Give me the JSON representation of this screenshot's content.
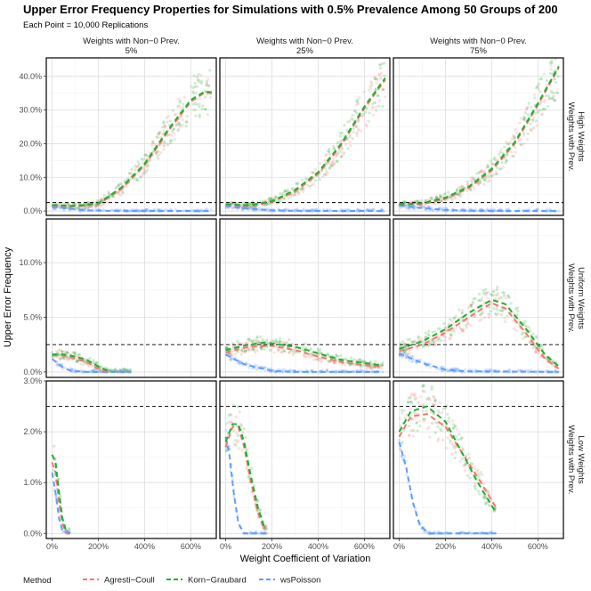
{
  "chart_data": {
    "type": "scatter",
    "title": "Upper Error Frequency Properties for Simulations with 0.5% Prevalence Among 50 Groups of 200",
    "subtitle": "Each Point = 10,000 Replications",
    "xlabel": "Weight Coefficient of Variation",
    "ylabel": "Upper Error Frequency",
    "x_ticks": [
      "0%",
      "200%",
      "400%",
      "600%"
    ],
    "x_tick_values": [
      0,
      200,
      400,
      600
    ],
    "xlim": [
      -25,
      710
    ],
    "reference_line": 2.5,
    "facet_cols": [
      {
        "label_line1": "Weights with Non−0 Prev.",
        "label_line2": "5%"
      },
      {
        "label_line1": "Weights with Non−0 Prev.",
        "label_line2": "25%"
      },
      {
        "label_line1": "Weights with Non−0 Prev.",
        "label_line2": "75%"
      }
    ],
    "facet_rows": [
      {
        "label_line1": "Weights with Prev.",
        "label_line2": "High Weights",
        "ylim": [
          -1.3,
          45.5
        ],
        "y_ticks": [
          "0.0%",
          "10.0%",
          "20.0%",
          "30.0%",
          "40.0%"
        ],
        "y_tick_values": [
          0,
          10,
          20,
          30,
          40
        ]
      },
      {
        "label_line1": "Weights with Prev.",
        "label_line2": "Uniform Weights",
        "ylim": [
          -0.5,
          14
        ],
        "y_ticks": [
          "0.0%",
          "5.0%",
          "10.0%"
        ],
        "y_tick_values": [
          0,
          5,
          10
        ]
      },
      {
        "label_line1": "Weights with Prev.",
        "label_line2": "Low Weights",
        "ylim": [
          -0.1,
          3.0
        ],
        "y_ticks": [
          "0.0%",
          "1.0%",
          "2.0%",
          "3.0%"
        ],
        "y_tick_values": [
          0,
          1,
          2,
          3
        ]
      }
    ],
    "legend": {
      "title": "Method",
      "position": "bottom-left"
    },
    "series": [
      {
        "name": "Agresti−Coull",
        "color": "#F8766D"
      },
      {
        "name": "Korn−Graubard",
        "color": "#1CB033"
      },
      {
        "name": "wsPoisson",
        "color": "#619CFF"
      }
    ],
    "panels": [
      {
        "row": 0,
        "col": 0,
        "x_max": 690,
        "curves": [
          {
            "series": 0,
            "points": [
              [
                0,
                1.6
              ],
              [
                100,
                1.3
              ],
              [
                200,
                2.0
              ],
              [
                300,
                6.5
              ],
              [
                400,
                13.5
              ],
              [
                500,
                23.5
              ],
              [
                600,
                32.5
              ],
              [
                660,
                35.2
              ],
              [
                690,
                35.0
              ]
            ]
          },
          {
            "series": 1,
            "points": [
              [
                0,
                1.8
              ],
              [
                100,
                1.5
              ],
              [
                200,
                2.3
              ],
              [
                300,
                7.0
              ],
              [
                400,
                14.0
              ],
              [
                500,
                24.0
              ],
              [
                600,
                33.0
              ],
              [
                660,
                35.5
              ],
              [
                690,
                35.3
              ]
            ]
          },
          {
            "series": 2,
            "points": [
              [
                0,
                1.3
              ],
              [
                60,
                0.8
              ],
              [
                150,
                0.2
              ],
              [
                250,
                0.05
              ],
              [
                690,
                0.0
              ]
            ]
          }
        ]
      },
      {
        "row": 0,
        "col": 1,
        "x_max": 690,
        "curves": [
          {
            "series": 0,
            "points": [
              [
                0,
                1.8
              ],
              [
                100,
                1.5
              ],
              [
                200,
                2.6
              ],
              [
                300,
                5.8
              ],
              [
                400,
                11.0
              ],
              [
                500,
                19.5
              ],
              [
                600,
                30.5
              ],
              [
                690,
                39.0
              ]
            ]
          },
          {
            "series": 1,
            "points": [
              [
                0,
                2.0
              ],
              [
                100,
                1.7
              ],
              [
                200,
                2.9
              ],
              [
                300,
                6.2
              ],
              [
                400,
                11.5
              ],
              [
                500,
                20.0
              ],
              [
                600,
                31.0
              ],
              [
                690,
                39.5
              ]
            ]
          },
          {
            "series": 2,
            "points": [
              [
                0,
                1.5
              ],
              [
                80,
                0.8
              ],
              [
                200,
                0.2
              ],
              [
                300,
                0.05
              ],
              [
                690,
                0.0
              ]
            ]
          }
        ]
      },
      {
        "row": 0,
        "col": 2,
        "x_max": 690,
        "curves": [
          {
            "series": 0,
            "points": [
              [
                0,
                1.8
              ],
              [
                100,
                2.0
              ],
              [
                200,
                3.6
              ],
              [
                300,
                6.8
              ],
              [
                400,
                12.0
              ],
              [
                500,
                20.0
              ],
              [
                600,
                31.5
              ],
              [
                690,
                42.5
              ]
            ]
          },
          {
            "series": 1,
            "points": [
              [
                0,
                2.0
              ],
              [
                100,
                2.3
              ],
              [
                200,
                4.0
              ],
              [
                300,
                7.2
              ],
              [
                400,
                12.5
              ],
              [
                500,
                20.5
              ],
              [
                600,
                32.0
              ],
              [
                690,
                43.0
              ]
            ]
          },
          {
            "series": 2,
            "points": [
              [
                0,
                1.6
              ],
              [
                80,
                1.0
              ],
              [
                200,
                0.3
              ],
              [
                320,
                0.05
              ],
              [
                690,
                0.0
              ]
            ]
          }
        ]
      },
      {
        "row": 1,
        "col": 0,
        "x_max": 340,
        "curves": [
          {
            "series": 0,
            "points": [
              [
                0,
                1.5
              ],
              [
                50,
                1.5
              ],
              [
                100,
                1.2
              ],
              [
                150,
                0.9
              ],
              [
                200,
                0.3
              ],
              [
                240,
                0.0
              ]
            ]
          },
          {
            "series": 1,
            "points": [
              [
                0,
                1.6
              ],
              [
                50,
                1.6
              ],
              [
                100,
                1.4
              ],
              [
                150,
                1.1
              ],
              [
                200,
                0.5
              ],
              [
                240,
                0.1
              ]
            ]
          },
          {
            "series": 2,
            "points": [
              [
                0,
                1.2
              ],
              [
                40,
                0.5
              ],
              [
                80,
                0.1
              ],
              [
                150,
                0.0
              ],
              [
                340,
                0.0
              ]
            ]
          }
        ]
      },
      {
        "row": 1,
        "col": 1,
        "x_max": 680,
        "curves": [
          {
            "series": 0,
            "points": [
              [
                0,
                1.8
              ],
              [
                100,
                2.3
              ],
              [
                200,
                2.4
              ],
              [
                300,
                2.0
              ],
              [
                400,
                1.4
              ],
              [
                500,
                0.9
              ],
              [
                600,
                0.6
              ],
              [
                680,
                0.5
              ]
            ]
          },
          {
            "series": 1,
            "points": [
              [
                0,
                2.0
              ],
              [
                100,
                2.5
              ],
              [
                170,
                2.7
              ],
              [
                300,
                2.3
              ],
              [
                400,
                1.7
              ],
              [
                500,
                1.1
              ],
              [
                600,
                0.8
              ],
              [
                680,
                0.6
              ]
            ]
          },
          {
            "series": 2,
            "points": [
              [
                0,
                1.6
              ],
              [
                80,
                0.7
              ],
              [
                200,
                0.1
              ],
              [
                300,
                0.0
              ],
              [
                680,
                0.0
              ]
            ]
          }
        ]
      },
      {
        "row": 1,
        "col": 2,
        "x_max": 690,
        "curves": [
          {
            "series": 0,
            "points": [
              [
                0,
                1.9
              ],
              [
                100,
                2.5
              ],
              [
                200,
                3.6
              ],
              [
                300,
                5.0
              ],
              [
                400,
                6.3
              ],
              [
                460,
                5.8
              ],
              [
                550,
                3.5
              ],
              [
                630,
                1.2
              ],
              [
                690,
                0.3
              ]
            ]
          },
          {
            "series": 1,
            "points": [
              [
                0,
                2.1
              ],
              [
                100,
                2.8
              ],
              [
                200,
                3.9
              ],
              [
                300,
                5.4
              ],
              [
                400,
                6.6
              ],
              [
                460,
                6.2
              ],
              [
                550,
                3.9
              ],
              [
                630,
                1.6
              ],
              [
                690,
                0.5
              ]
            ]
          },
          {
            "series": 2,
            "points": [
              [
                0,
                1.7
              ],
              [
                100,
                0.8
              ],
              [
                200,
                0.2
              ],
              [
                300,
                0.05
              ],
              [
                690,
                0.0
              ]
            ]
          }
        ]
      },
      {
        "row": 2,
        "col": 0,
        "x_max": 80,
        "curves": [
          {
            "series": 0,
            "points": [
              [
                0,
                1.4
              ],
              [
                15,
                1.2
              ],
              [
                30,
                0.6
              ],
              [
                45,
                0.2
              ],
              [
                60,
                0.0
              ]
            ]
          },
          {
            "series": 1,
            "points": [
              [
                0,
                1.55
              ],
              [
                15,
                1.4
              ],
              [
                30,
                0.8
              ],
              [
                45,
                0.3
              ],
              [
                60,
                0.05
              ]
            ]
          },
          {
            "series": 2,
            "points": [
              [
                0,
                1.2
              ],
              [
                15,
                0.8
              ],
              [
                30,
                0.3
              ],
              [
                45,
                0.05
              ],
              [
                80,
                0.0
              ]
            ]
          }
        ]
      },
      {
        "row": 2,
        "col": 1,
        "x_max": 180,
        "curves": [
          {
            "series": 0,
            "points": [
              [
                0,
                1.7
              ],
              [
                30,
                2.1
              ],
              [
                55,
                2.1
              ],
              [
                80,
                1.7
              ],
              [
                110,
                1.0
              ],
              [
                140,
                0.4
              ],
              [
                165,
                0.1
              ]
            ]
          },
          {
            "series": 1,
            "points": [
              [
                0,
                1.8
              ],
              [
                30,
                2.15
              ],
              [
                55,
                2.15
              ],
              [
                80,
                1.8
              ],
              [
                110,
                1.1
              ],
              [
                140,
                0.5
              ],
              [
                165,
                0.15
              ]
            ]
          },
          {
            "series": 2,
            "points": [
              [
                0,
                1.9
              ],
              [
                15,
                1.6
              ],
              [
                35,
                0.8
              ],
              [
                55,
                0.2
              ],
              [
                80,
                0.0
              ],
              [
                180,
                0.0
              ]
            ]
          }
        ]
      },
      {
        "row": 2,
        "col": 2,
        "x_max": 420,
        "curves": [
          {
            "series": 0,
            "points": [
              [
                0,
                1.9
              ],
              [
                50,
                2.3
              ],
              [
                120,
                2.35
              ],
              [
                200,
                2.1
              ],
              [
                270,
                1.6
              ],
              [
                340,
                1.1
              ],
              [
                420,
                0.5
              ]
            ]
          },
          {
            "series": 1,
            "points": [
              [
                0,
                2.0
              ],
              [
                50,
                2.4
              ],
              [
                120,
                2.5
              ],
              [
                200,
                2.2
              ],
              [
                270,
                1.6
              ],
              [
                340,
                1.0
              ],
              [
                420,
                0.4
              ]
            ]
          },
          {
            "series": 2,
            "points": [
              [
                0,
                1.8
              ],
              [
                30,
                1.3
              ],
              [
                60,
                0.6
              ],
              [
                90,
                0.15
              ],
              [
                130,
                0.0
              ],
              [
                420,
                0.0
              ]
            ]
          }
        ]
      }
    ]
  }
}
